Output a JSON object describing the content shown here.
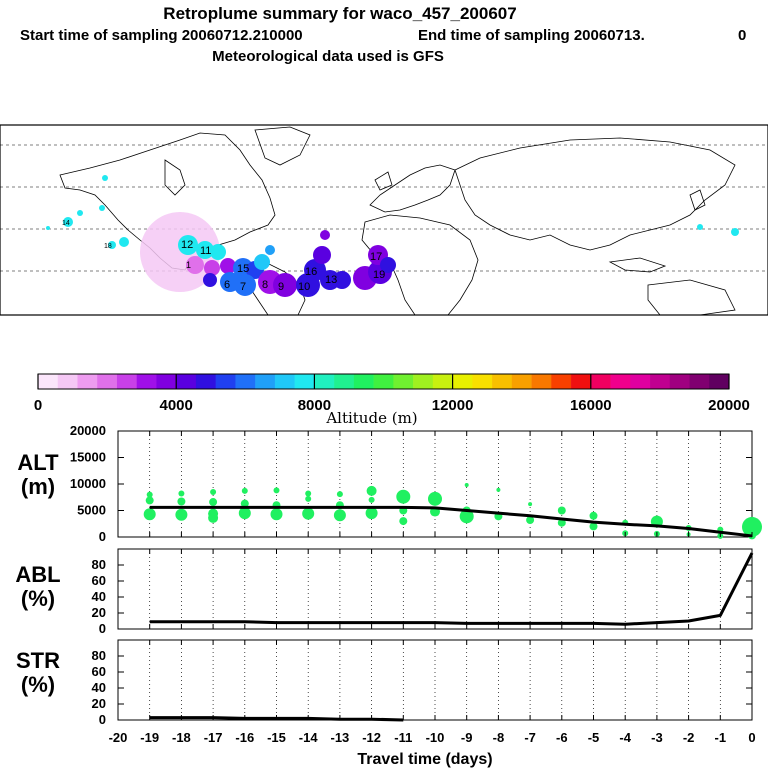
{
  "header": {
    "title": "Retroplume summary for waco_457_200607",
    "start_label": "Start time of sampling 20060712.210000",
    "end_label": "End time of sampling 20060713.",
    "end_suffix": "0",
    "met_label": "Meteorological data used is GFS"
  },
  "colorbar": {
    "ticks": [
      "0",
      "4000",
      "8000",
      "12000",
      "16000",
      "20000"
    ],
    "label": "Altitude (m)",
    "colors": [
      "#fbe6fb",
      "#f5c8f5",
      "#ee9cf0",
      "#e070ea",
      "#c840e8",
      "#a010e8",
      "#8000e0",
      "#5a00e0",
      "#3010e0",
      "#2040f0",
      "#2070f8",
      "#20a0f8",
      "#20c8f8",
      "#20e8f0",
      "#20f0c0",
      "#20f090",
      "#20f060",
      "#40f040",
      "#70f030",
      "#a0f020",
      "#c8f010",
      "#e8f000",
      "#f8e000",
      "#f8c000",
      "#f8a000",
      "#f87800",
      "#f84000",
      "#f01010",
      "#f00060",
      "#f0008c",
      "#e000a0",
      "#c00090",
      "#a00080",
      "#800070",
      "#600060"
    ]
  },
  "map": {
    "labels": [
      "12",
      "11",
      "6",
      "8",
      "15",
      "17",
      "16",
      "13",
      "10",
      "19",
      "9",
      "7",
      "14",
      "18",
      "1"
    ]
  },
  "chart_data": [
    {
      "type": "line",
      "panel": "ALT",
      "ylabel_top": "ALT",
      "ylabel_bottom": "(m)",
      "ylim": [
        0,
        20000
      ],
      "yticks": [
        0,
        5000,
        10000,
        15000,
        20000
      ],
      "x": [
        -19,
        -18,
        -17,
        -16,
        -15,
        -14,
        -13,
        -12,
        -11,
        -10,
        -9,
        -8,
        -7,
        -6,
        -5,
        -4,
        -3,
        -2,
        -1,
        0
      ],
      "values": [
        5600,
        5600,
        5600,
        5600,
        5600,
        5600,
        5600,
        5600,
        5600,
        5500,
        5000,
        4500,
        4000,
        3400,
        2800,
        2400,
        2100,
        1600,
        900,
        200
      ],
      "scatter": {
        "color": "#20f060",
        "points": [
          [
            -19,
            8000,
            3
          ],
          [
            -19,
            6900,
            4
          ],
          [
            -19,
            4300,
            6
          ],
          [
            -18,
            8200,
            3
          ],
          [
            -18,
            6700,
            4
          ],
          [
            -18,
            4200,
            6
          ],
          [
            -17,
            8500,
            3
          ],
          [
            -17,
            6600,
            4
          ],
          [
            -17,
            4400,
            5
          ],
          [
            -17,
            3600,
            5
          ],
          [
            -16,
            8700,
            3
          ],
          [
            -16,
            6300,
            4
          ],
          [
            -16,
            4500,
            6
          ],
          [
            -15,
            8800,
            3
          ],
          [
            -15,
            6000,
            4
          ],
          [
            -15,
            4300,
            6
          ],
          [
            -14,
            8200,
            3
          ],
          [
            -14,
            7200,
            3
          ],
          [
            -14,
            4400,
            6
          ],
          [
            -13,
            8100,
            3
          ],
          [
            -13,
            6000,
            4
          ],
          [
            -13,
            4100,
            6
          ],
          [
            -12,
            8700,
            5
          ],
          [
            -12,
            7000,
            3
          ],
          [
            -12,
            4500,
            6
          ],
          [
            -11,
            7600,
            7
          ],
          [
            -11,
            5000,
            4
          ],
          [
            -11,
            3000,
            4
          ],
          [
            -10,
            7200,
            7
          ],
          [
            -10,
            4800,
            5
          ],
          [
            -9,
            9800,
            2
          ],
          [
            -9,
            5000,
            4
          ],
          [
            -9,
            3900,
            7
          ],
          [
            -8,
            8900,
            2
          ],
          [
            -8,
            3900,
            4
          ],
          [
            -7,
            6200,
            2
          ],
          [
            -7,
            3200,
            4
          ],
          [
            -6,
            5000,
            4
          ],
          [
            -6,
            2700,
            4
          ],
          [
            -5,
            4000,
            4
          ],
          [
            -5,
            2000,
            4
          ],
          [
            -4,
            2700,
            3
          ],
          [
            -4,
            700,
            3
          ],
          [
            -3,
            2900,
            6
          ],
          [
            -3,
            600,
            3
          ],
          [
            -2,
            1700,
            3
          ],
          [
            -2,
            500,
            2
          ],
          [
            -1,
            1400,
            3
          ],
          [
            -1,
            200,
            3
          ],
          [
            0,
            1900,
            10
          ],
          [
            0,
            300,
            4
          ]
        ]
      }
    },
    {
      "type": "line",
      "panel": "ABL",
      "ylabel_top": "ABL",
      "ylabel_bottom": "(%)",
      "ylim": [
        0,
        100
      ],
      "yticks": [
        0,
        20,
        40,
        60,
        80
      ],
      "x": [
        -19,
        -18,
        -17,
        -16,
        -15,
        -14,
        -13,
        -12,
        -11,
        -10,
        -9,
        -8,
        -7,
        -6,
        -5,
        -4,
        -3,
        -2,
        -1,
        0
      ],
      "values": [
        9,
        9,
        9,
        9,
        8,
        8,
        8,
        8,
        8,
        8,
        7,
        7,
        7,
        7,
        7,
        6,
        8,
        10,
        17,
        95
      ]
    },
    {
      "type": "line",
      "panel": "STR",
      "ylabel_top": "STR",
      "ylabel_bottom": "(%)",
      "ylim": [
        0,
        100
      ],
      "yticks": [
        0,
        20,
        40,
        60,
        80
      ],
      "x": [
        -19,
        -18,
        -17,
        -16,
        -15,
        -14,
        -13,
        -12,
        -11
      ],
      "values": [
        3,
        3,
        3,
        2,
        2,
        2,
        1,
        1,
        0
      ],
      "xlabel": "Travel time (days)",
      "xticks": [
        -20,
        -19,
        -18,
        -17,
        -16,
        -15,
        -14,
        -13,
        -12,
        -11,
        -10,
        -9,
        -8,
        -7,
        -6,
        -5,
        -4,
        -3,
        -2,
        -1,
        0
      ],
      "xtick_labels": [
        "-20",
        "-19",
        "-18",
        "-17",
        "-16",
        "-15",
        "-14",
        "-13",
        "-12",
        "-11",
        "-10",
        "-9",
        "-8",
        "-7",
        "-6",
        "-5",
        "-4",
        "-3",
        "-2",
        "-1",
        "0"
      ]
    }
  ]
}
